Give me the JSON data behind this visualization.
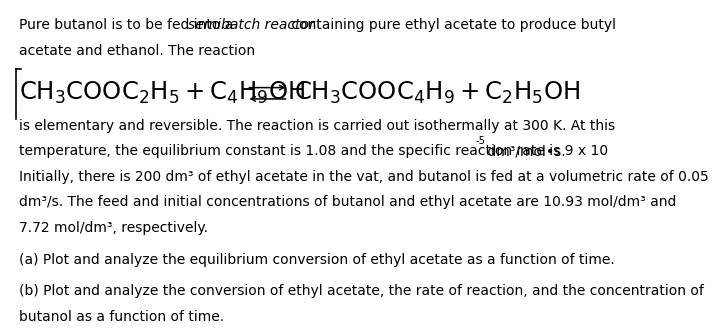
{
  "t1a": "Pure butanol is to be fed into a ",
  "t1b": "semibatch reactor",
  "t1c": " containing pure ethyl acetate to produce butyl",
  "t2": "acetate and ethanol. The reaction",
  "eq_left": "$\\mathregular{CH_3COOC_2H_5 + C_4H_9OH}$",
  "eq_right": "$\\mathregular{CH_3COOC_4H_9 + C_2H_5OH}$",
  "p1": "is elementary and reversible. The reaction is carried out isothermally at 300 K. At this",
  "p2a": "temperature, the equilibrium constant is 1.08 and the specific reaction rate is 9 x 10",
  "p2b": "-5",
  "p2c": " dm³/mol•s.",
  "p3": "Initially, there is 200 dm³ of ethyl acetate in the vat, and butanol is fed at a volumetric rate of 0.05",
  "p4": "dm³/s. The feed and initial concentrations of butanol and ethyl acetate are 10.93 mol/dm³ and",
  "p5": "7.72 mol/dm³, respectively.",
  "pa": "(a) Plot and analyze the equilibrium conversion of ethyl acetate as a function of time.",
  "pb1": "(b) Plot and analyze the conversion of ethyl acetate, the rate of reaction, and the concentration of",
  "pb2": "butanol as a function of time.",
  "bg": "#ffffff",
  "fg": "#000000",
  "fs": 10.0,
  "eq_fs": 17.5
}
